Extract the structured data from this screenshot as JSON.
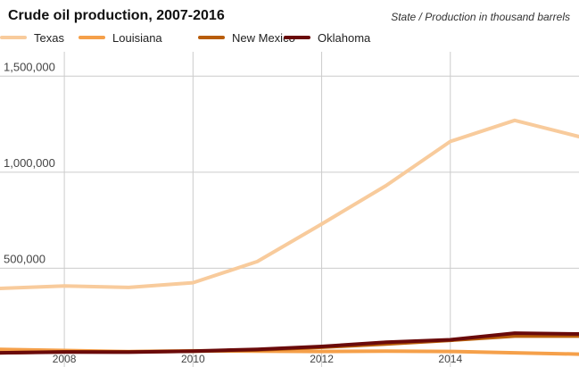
{
  "chart_data": {
    "type": "line",
    "title": "Crude oil production, 2007-2016",
    "subtitle": "State / Production in thousand barrels",
    "x": [
      2007,
      2008,
      2009,
      2010,
      2011,
      2012,
      2013,
      2014,
      2015,
      2016
    ],
    "xticks": [
      "2008",
      "2010",
      "2012",
      "2014"
    ],
    "ylim": [
      0,
      1650000
    ],
    "yticks": [
      {
        "value": 500000,
        "label": "500,000"
      },
      {
        "value": 1000000,
        "label": "1,000,000"
      },
      {
        "value": 1500000,
        "label": "1,500,000"
      }
    ],
    "grid": true,
    "legend_position": "top",
    "series": [
      {
        "name": "Texas",
        "color": "#f8cb9c",
        "values": [
          395000,
          408000,
          400000,
          425000,
          535000,
          730000,
          930000,
          1160000,
          1270000,
          1185000
        ]
      },
      {
        "name": "Louisiana",
        "color": "#f5a04a",
        "values": [
          78000,
          72000,
          66000,
          70000,
          69000,
          67000,
          69000,
          67000,
          60000,
          53000
        ]
      },
      {
        "name": "New Mexico",
        "color": "#b85d0a",
        "values": [
          60000,
          65000,
          65000,
          68000,
          75000,
          89000,
          106000,
          125000,
          147000,
          147000
        ]
      },
      {
        "name": "Oklahoma",
        "color": "#6a0a0a",
        "values": [
          60000,
          64000,
          63000,
          69000,
          78000,
          93000,
          115000,
          128000,
          162000,
          158000
        ]
      }
    ]
  }
}
